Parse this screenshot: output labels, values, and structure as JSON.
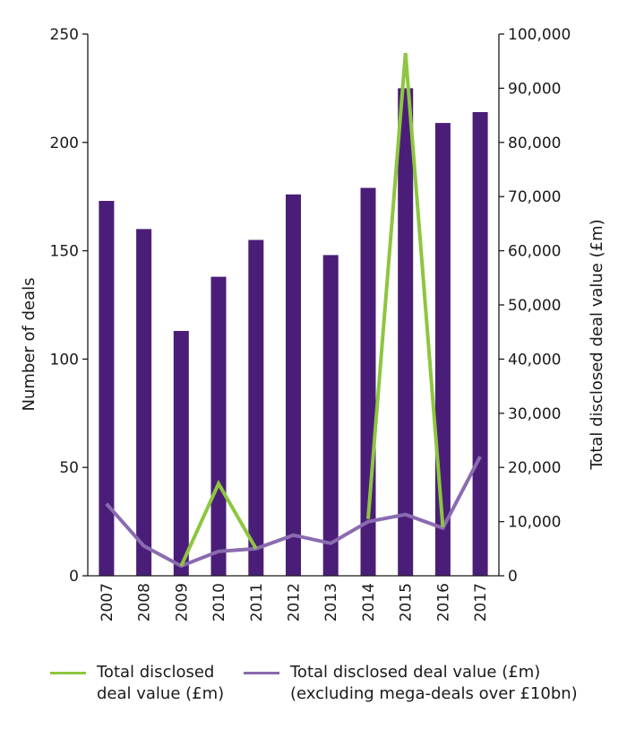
{
  "chart_data": {
    "type": "bar",
    "categories": [
      "2007",
      "2008",
      "2009",
      "2010",
      "2011",
      "2012",
      "2013",
      "2014",
      "2015",
      "2016",
      "2017"
    ],
    "series": [
      {
        "name": "Number of deals",
        "type": "bar",
        "axis": "left",
        "color": "#4a1e78",
        "values": [
          173,
          160,
          113,
          138,
          155,
          176,
          148,
          179,
          225,
          209,
          214
        ]
      },
      {
        "name": "Total disclosed deal value (£m)",
        "type": "line",
        "axis": "right",
        "color": "#8dc63f",
        "values": [
          null,
          null,
          1800,
          17000,
          5000,
          null,
          null,
          10500,
          96500,
          9000,
          null
        ]
      },
      {
        "name": "Total disclosed deal value (£m) (excluding mega-deals over £10bn)",
        "type": "line",
        "axis": "right",
        "color": "#8b6bb0",
        "values": [
          13300,
          5500,
          1800,
          4500,
          5000,
          7500,
          6000,
          10000,
          11300,
          8800,
          22000
        ]
      }
    ],
    "ylabel": "Number of deals",
    "y2label": "Total disclosed deal value (£m)",
    "ylim": [
      0,
      250
    ],
    "y2lim": [
      0,
      100000
    ],
    "yticks": [
      "0",
      "50",
      "100",
      "150",
      "200",
      "250"
    ],
    "y2ticks": [
      "0",
      "10,000",
      "20,000",
      "30,000",
      "40,000",
      "50,000",
      "60,000",
      "70,000",
      "80,000",
      "90,000",
      "100,000"
    ],
    "grid": false,
    "legend": "bottom"
  },
  "legend": {
    "item1_line1": "Total disclosed",
    "item1_line2": "deal value (£m)",
    "item2_line1": "Total disclosed deal value (£m)",
    "item2_line2": "(excluding mega-deals over £10bn)"
  }
}
